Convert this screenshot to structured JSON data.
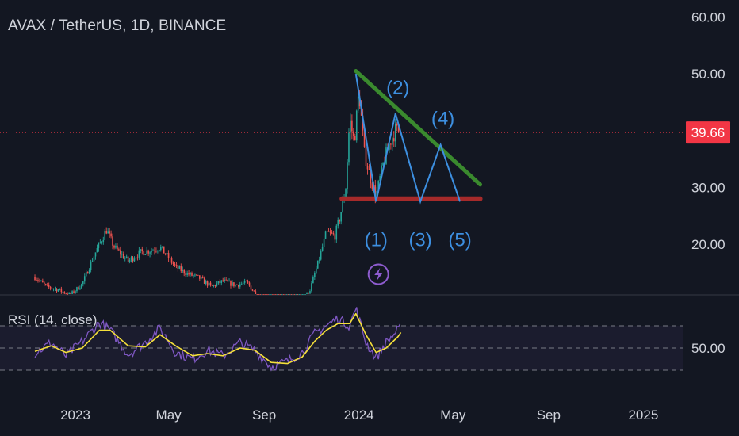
{
  "header": {
    "title": "AVAX / TetherUS, 1D, BINANCE"
  },
  "rsi": {
    "label": "RSI (14, close)",
    "level_label": "50.00",
    "upper_level": 70,
    "lower_level": 30,
    "mid_level": 50
  },
  "current_price": {
    "value": 39.66,
    "label": "39.66"
  },
  "colors": {
    "background": "#131722",
    "up_candle": "#26a69a",
    "down_candle": "#ef5350",
    "price_line": "#f23645",
    "wave_lines": "#3d8fe0",
    "resistance_line": "#3a8a2e",
    "support_line": "#a62a2a",
    "rsi_line": "#7e57c2",
    "rsi_ma_line": "#f5e03a",
    "lightning_badge": "#8e5ccf"
  },
  "icons": {
    "badge": "lightning-icon"
  },
  "chart_data": {
    "type": "candlestick",
    "symbol": "AVAX / TetherUS",
    "interval": "1D",
    "exchange": "BINANCE",
    "x_tick_labels": [
      "2023",
      "May",
      "Sep",
      "2024",
      "May",
      "Sep",
      "2025"
    ],
    "x_tick_dates": [
      "2023-01-01",
      "2023-05-01",
      "2023-09-01",
      "2024-01-01",
      "2024-05-01",
      "2024-09-01",
      "2025-01-01"
    ],
    "y_tick_labels": [
      "60.00",
      "50.00",
      "30.00",
      "20.00"
    ],
    "y_tick_values": [
      60,
      50,
      30,
      20
    ],
    "ylim": [
      10.7,
      62.5
    ],
    "price_path": {
      "dates": [
        "2022-11-10",
        "2022-11-25",
        "2022-12-10",
        "2022-12-25",
        "2023-01-10",
        "2023-01-25",
        "2023-02-10",
        "2023-02-20",
        "2023-03-10",
        "2023-03-25",
        "2023-04-10",
        "2023-04-20",
        "2023-05-10",
        "2023-05-25",
        "2023-06-10",
        "2023-06-25",
        "2023-07-10",
        "2023-07-25",
        "2023-08-10",
        "2023-08-25",
        "2023-09-10",
        "2023-09-25",
        "2023-10-10",
        "2023-10-20",
        "2023-10-30",
        "2023-11-10",
        "2023-11-20",
        "2023-12-01",
        "2023-12-08",
        "2023-12-15",
        "2023-12-20",
        "2023-12-26",
        "2024-01-01",
        "2024-01-08",
        "2024-01-15",
        "2024-01-23",
        "2024-02-01",
        "2024-02-10",
        "2024-02-17",
        "2024-02-24"
      ],
      "close": [
        14.2,
        12.5,
        12.0,
        11.0,
        13.0,
        18.0,
        22.5,
        19.5,
        17.0,
        18.5,
        19.0,
        19.5,
        16.0,
        14.8,
        14.0,
        12.5,
        13.5,
        12.8,
        13.2,
        10.5,
        9.8,
        9.0,
        9.3,
        10.0,
        12.0,
        17.0,
        22.0,
        21.5,
        25.0,
        30.0,
        42.0,
        38.0,
        47.0,
        36.0,
        32.0,
        28.5,
        34.0,
        38.0,
        40.0,
        39.66
      ]
    },
    "annotations": {
      "wave_labels": [
        "(1)",
        "(2)",
        "(3)",
        "(4)",
        "(5)"
      ],
      "wave_path": {
        "dates": [
          "2023-12-28",
          "2024-01-23",
          "2024-02-17",
          "2024-03-20",
          "2024-04-15",
          "2024-05-10"
        ],
        "values": [
          50,
          27.5,
          43,
          27.5,
          37.5,
          27.5
        ]
      },
      "resistance_line": {
        "dates": [
          "2023-12-28",
          "2024-06-05"
        ],
        "values": [
          50.5,
          30.5
        ]
      },
      "support_line": {
        "dates": [
          "2023-12-10",
          "2024-06-05"
        ],
        "values": [
          28.0,
          28.0
        ]
      }
    },
    "rsi_series": {
      "dates": [
        "2022-11-10",
        "2022-12-01",
        "2022-12-20",
        "2023-01-10",
        "2023-02-01",
        "2023-02-15",
        "2023-03-10",
        "2023-04-01",
        "2023-04-20",
        "2023-05-10",
        "2023-06-01",
        "2023-06-20",
        "2023-07-10",
        "2023-08-01",
        "2023-08-20",
        "2023-09-10",
        "2023-10-01",
        "2023-10-20",
        "2023-11-05",
        "2023-11-20",
        "2023-12-05",
        "2023-12-20",
        "2023-12-28",
        "2024-01-10",
        "2024-01-23",
        "2024-02-05",
        "2024-02-20",
        "2024-02-24"
      ],
      "values": [
        45,
        55,
        43,
        56,
        73,
        66,
        44,
        55,
        68,
        46,
        40,
        48,
        43,
        55,
        48,
        33,
        38,
        46,
        63,
        70,
        77,
        70,
        86,
        55,
        41,
        55,
        66,
        68
      ]
    },
    "rsi_ma_series": {
      "dates": [
        "2022-11-10",
        "2022-12-01",
        "2022-12-20",
        "2023-01-10",
        "2023-02-01",
        "2023-02-15",
        "2023-03-10",
        "2023-04-01",
        "2023-04-20",
        "2023-05-10",
        "2023-06-01",
        "2023-06-20",
        "2023-07-10",
        "2023-08-01",
        "2023-08-20",
        "2023-09-10",
        "2023-10-01",
        "2023-10-20",
        "2023-11-05",
        "2023-11-20",
        "2023-12-05",
        "2023-12-20",
        "2023-12-28",
        "2024-01-10",
        "2024-01-23",
        "2024-02-05",
        "2024-02-20",
        "2024-02-24"
      ],
      "values": [
        47,
        52,
        46,
        50,
        66,
        66,
        52,
        51,
        62,
        52,
        43,
        45,
        43,
        50,
        48,
        37,
        36,
        42,
        56,
        66,
        72,
        72,
        81,
        62,
        46,
        50,
        60,
        64
      ]
    }
  }
}
